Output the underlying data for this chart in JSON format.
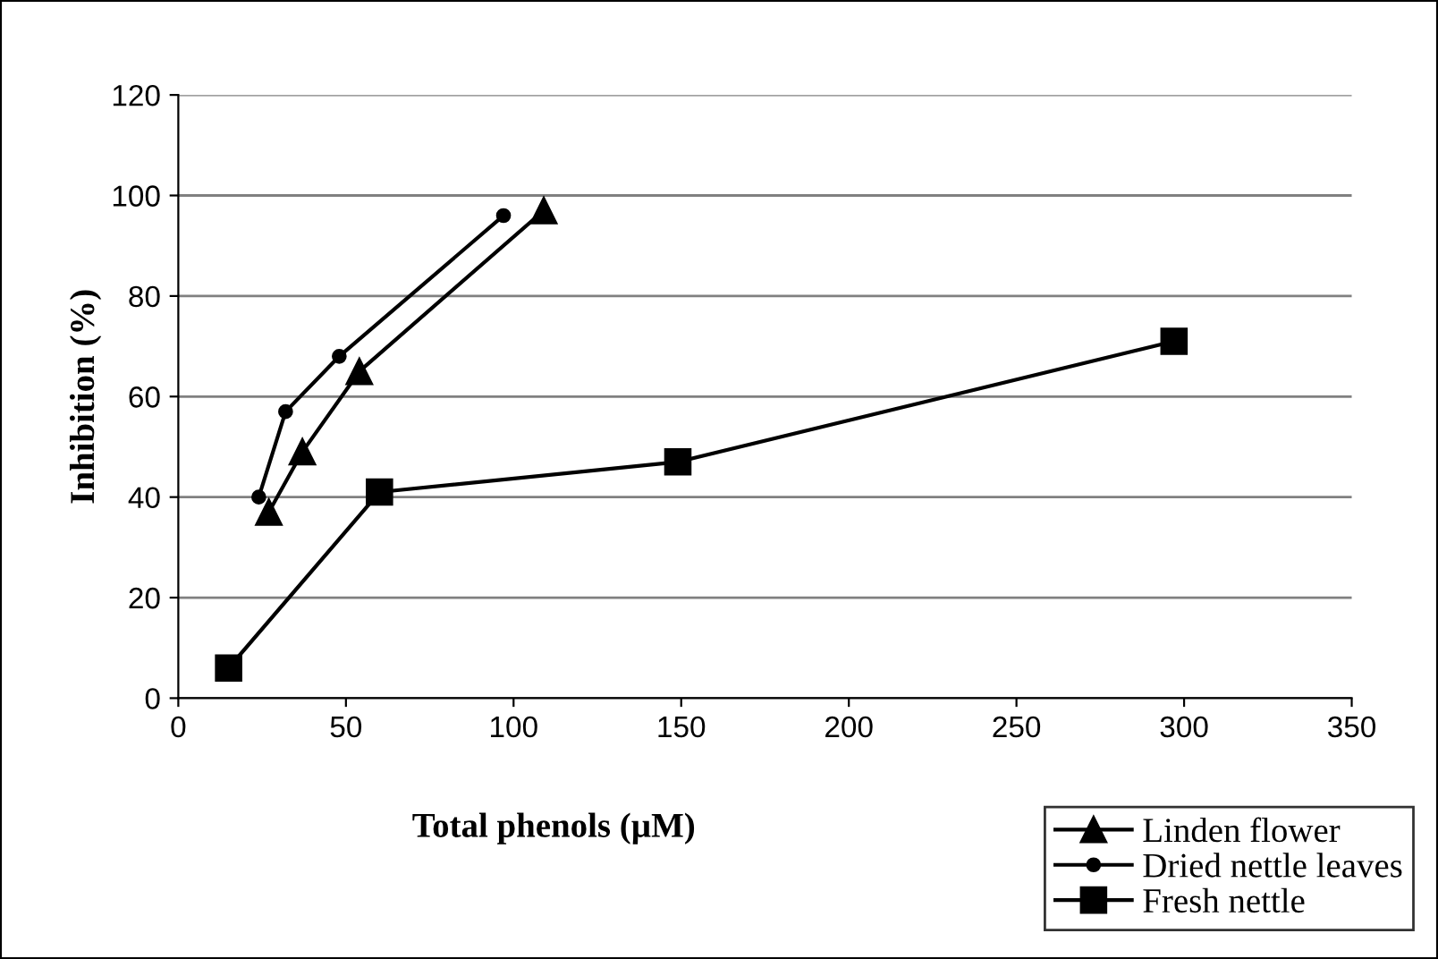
{
  "chart_data": {
    "type": "line",
    "xlabel": "Total phenols (µM)",
    "ylabel": "Inhibition (%)",
    "xlim": [
      0,
      350
    ],
    "xticks": [
      0,
      50,
      100,
      150,
      200,
      250,
      300,
      350
    ],
    "ylim": [
      0,
      120
    ],
    "yticks": [
      0,
      20,
      40,
      60,
      80,
      100,
      120
    ],
    "grid": "y",
    "legend": "bottom right",
    "line_style": "solid",
    "series": [
      {
        "name": "Linden flower",
        "color": "#000000",
        "marker": "triangle",
        "x": [
          27,
          37,
          54,
          109
        ],
        "values": [
          37,
          49,
          65,
          97
        ]
      },
      {
        "name": "Dried nettle leaves",
        "color": "#000000",
        "marker": "circle",
        "x": [
          24,
          32,
          48,
          97
        ],
        "values": [
          40,
          57,
          68,
          96
        ]
      },
      {
        "name": "Fresh nettle",
        "color": "#000000",
        "marker": "square",
        "x": [
          15,
          60,
          149,
          297
        ],
        "values": [
          6,
          41,
          47,
          71
        ]
      }
    ]
  }
}
